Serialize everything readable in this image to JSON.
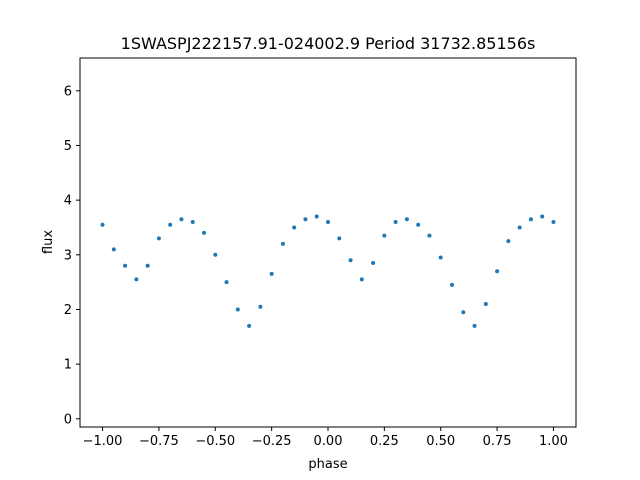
{
  "chart_data": {
    "type": "scatter",
    "title": "1SWASPJ222157.91-024002.9 Period 31732.85156s",
    "xlabel": "phase",
    "ylabel": "flux",
    "xlim": [
      -1.1,
      1.1
    ],
    "ylim": [
      -0.15,
      6.6
    ],
    "xticks": [
      -1.0,
      -0.75,
      -0.5,
      -0.25,
      0.0,
      0.25,
      0.5,
      0.75,
      1.0
    ],
    "xtick_labels": [
      "−1.00",
      "−0.75",
      "−0.50",
      "−0.25",
      "0.00",
      "0.25",
      "0.50",
      "0.75",
      "1.00"
    ],
    "yticks": [
      0,
      1,
      2,
      3,
      4,
      5,
      6
    ],
    "ytick_labels": [
      "0",
      "1",
      "2",
      "3",
      "4",
      "5",
      "6"
    ],
    "grid": false,
    "legend": "none",
    "point_color": "#1f77b4",
    "series": [
      {
        "x": [
          -1.0,
          -0.95,
          -0.9,
          -0.85,
          -0.8,
          -0.75,
          -0.7,
          -0.65,
          -0.6,
          -0.55,
          -0.5,
          -0.45,
          -0.4,
          -0.35,
          -0.3,
          -0.25,
          -0.2,
          -0.15,
          -0.1,
          -0.05,
          0.0,
          0.05,
          0.1,
          0.15,
          0.2,
          0.25,
          0.3,
          0.35,
          0.4,
          0.45,
          0.5,
          0.55,
          0.6,
          0.65,
          0.7,
          0.75,
          0.8,
          0.85,
          0.9,
          0.95,
          1.0
        ],
        "y": [
          3.55,
          3.1,
          2.8,
          2.55,
          2.8,
          3.3,
          3.55,
          3.65,
          3.6,
          3.4,
          3.0,
          2.5,
          2.0,
          1.7,
          2.05,
          2.65,
          3.2,
          3.5,
          3.65,
          3.7,
          3.6,
          3.3,
          2.9,
          2.55,
          2.85,
          3.35,
          3.6,
          3.65,
          3.55,
          3.35,
          2.95,
          2.45,
          1.95,
          1.7,
          2.1,
          2.7,
          3.25,
          3.5,
          3.65,
          3.7,
          3.6
        ]
      }
    ]
  }
}
